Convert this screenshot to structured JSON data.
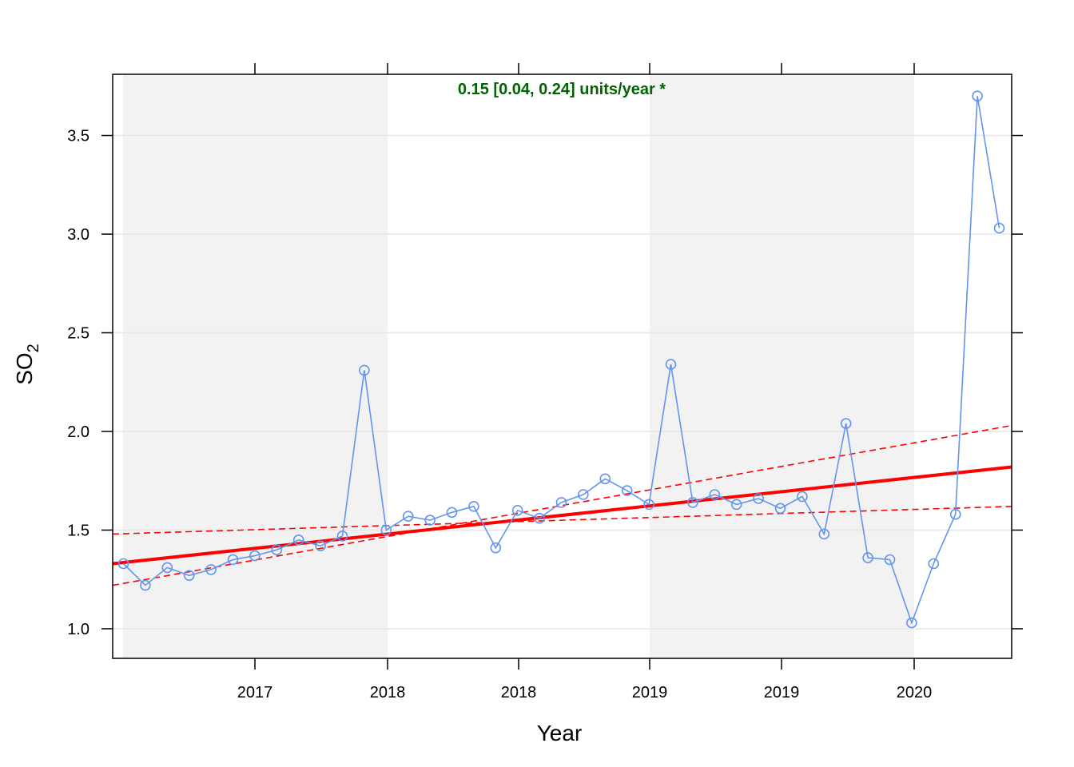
{
  "chart_data": {
    "type": "line",
    "annotation": "0.15 [0.04, 0.24] units/year *",
    "xlabel": "Year",
    "ylabel_main": "SO",
    "ylabel_sub": "2",
    "x_tick_labels": [
      "2017",
      "2018",
      "2018",
      "2019",
      "2019",
      "2020"
    ],
    "y_tick_labels": [
      "1.0",
      "1.5",
      "2.0",
      "2.5",
      "3.0",
      "3.5"
    ],
    "y_ticks": [
      1.0,
      1.5,
      2.0,
      2.5,
      3.0,
      3.5
    ],
    "ylim": [
      0.85,
      3.81
    ],
    "grid": true,
    "shaded_bands": [
      "2016-2017",
      "2019-2020"
    ],
    "series": [
      {
        "values": [
          1.33,
          1.22,
          1.31,
          1.27,
          1.3,
          1.35,
          1.37,
          1.4,
          1.45,
          1.42,
          1.47,
          2.31,
          1.5,
          1.57,
          1.55,
          1.59,
          1.62,
          1.41,
          1.6,
          1.56,
          1.64,
          1.68,
          1.76,
          1.7,
          1.63,
          2.34,
          1.64,
          1.68,
          1.63,
          1.66,
          1.61,
          1.67,
          1.48,
          2.04,
          1.36,
          1.35,
          1.03,
          1.33,
          1.58,
          3.7,
          3.03
        ]
      }
    ],
    "trend": {
      "slope": 0.15,
      "lower": 0.04,
      "upper": 0.24,
      "line_start": 1.33,
      "line_end": 1.82,
      "lower_start": 1.48,
      "lower_end": 1.62,
      "upper_start": 1.22,
      "upper_end": 2.03
    },
    "colors": {
      "series": "#6495ED",
      "trend": "#FF0000",
      "annotation": "#006400",
      "band": "#F2F2F2",
      "grid": "#E6E6E6"
    }
  }
}
